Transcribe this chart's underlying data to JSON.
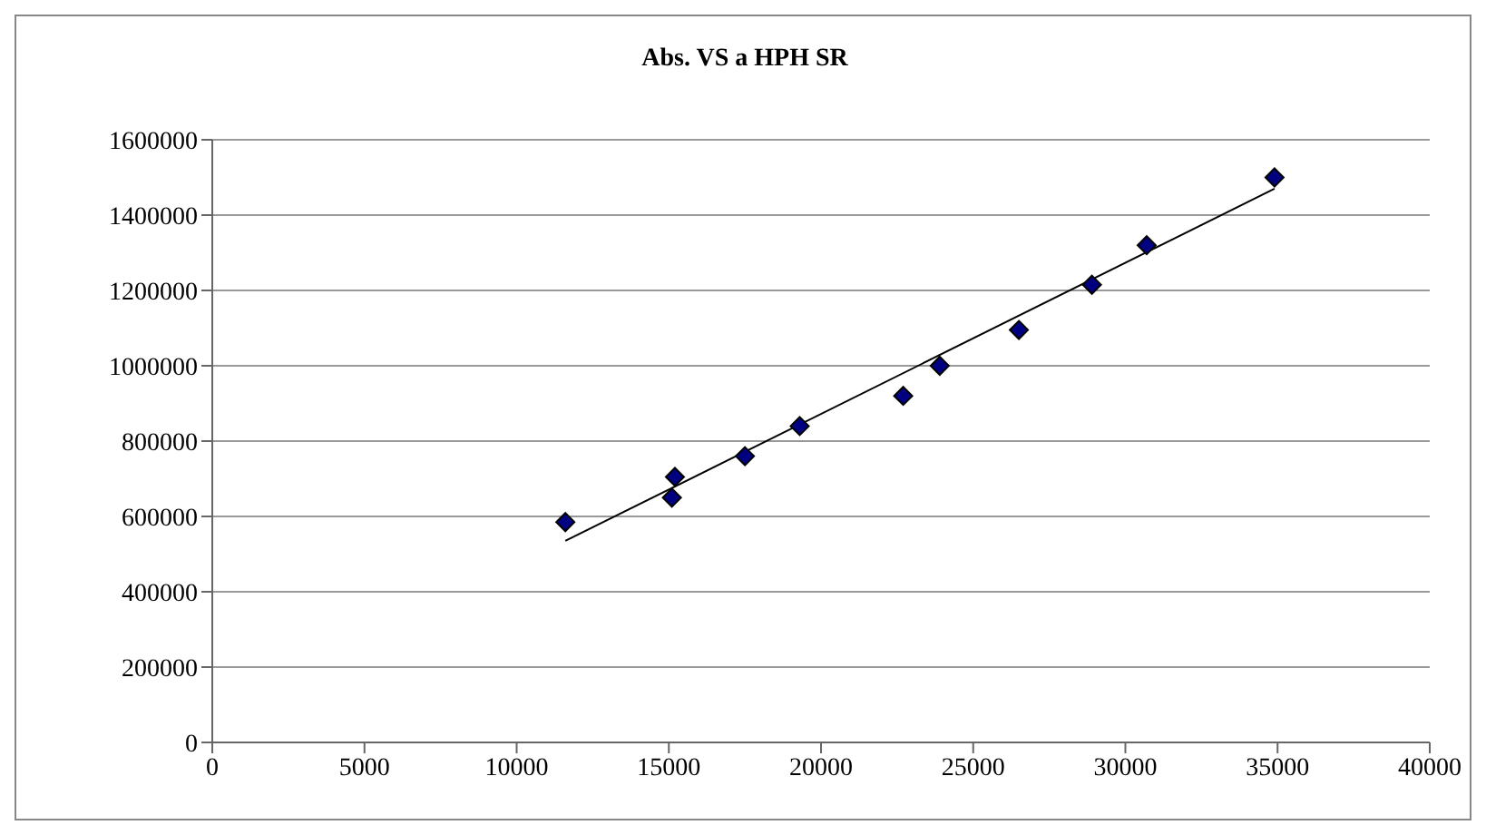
{
  "chart_data": {
    "type": "scatter",
    "title": "Abs. VS a HPH SR",
    "series": [
      {
        "color": "#000080",
        "marker": "diamond",
        "x": [
          11600,
          15100,
          15200,
          17500,
          19300,
          22700,
          23900,
          26500,
          28900,
          30700,
          34900
        ],
        "values": [
          585000,
          650000,
          705000,
          760000,
          840000,
          920000,
          1000000,
          1095000,
          1215000,
          1320000,
          1500000
        ]
      },
      {
        "type": "line",
        "color": "#000000",
        "marker": "none",
        "line_style": "solid",
        "x": [
          11600,
          34900
        ],
        "values": [
          535000,
          1470000
        ]
      }
    ],
    "xlim": [
      0,
      40000
    ],
    "xticks": [
      0,
      5000,
      10000,
      15000,
      20000,
      25000,
      30000,
      35000,
      40000
    ],
    "ylim": [
      0,
      1600000
    ],
    "yticks": [
      0,
      200000,
      400000,
      600000,
      800000,
      1000000,
      1200000,
      1400000,
      1600000
    ],
    "grid": "y",
    "legend": false
  }
}
